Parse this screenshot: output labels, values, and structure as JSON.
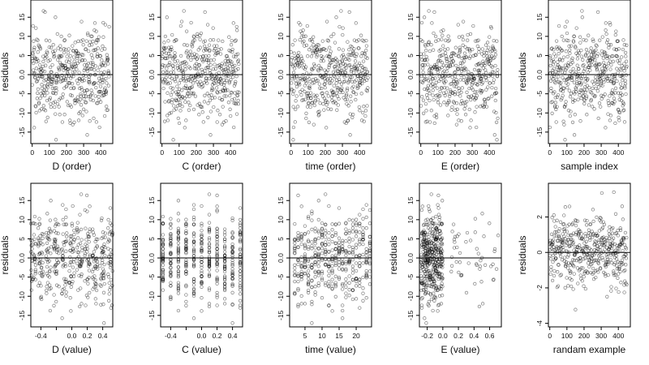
{
  "chart_data": [
    {
      "type": "scatter",
      "xlabel": "D (order)",
      "ylabel": "residuals",
      "xlim": [
        -8,
        470
      ],
      "ylim": [
        -18,
        19.5
      ],
      "xticks": [
        "0",
        "100",
        "200",
        "300",
        "400"
      ],
      "xtick_values": [
        0,
        100,
        200,
        300,
        400
      ],
      "yticks": [
        "-15",
        "-10",
        "-5",
        "0.0",
        "5",
        "10",
        "15"
      ],
      "ytick_values": [
        -15,
        -10,
        -5,
        0,
        5,
        10,
        15
      ],
      "reference_line": 0,
      "n_points": 450,
      "points_desc": "residuals vs sample order, roughly uniform scatter between -15 and 17"
    },
    {
      "type": "scatter",
      "xlabel": "C (order)",
      "ylabel": "residuals",
      "xlim": [
        -8,
        470
      ],
      "ylim": [
        -18,
        19.5
      ],
      "xticks": [
        "0",
        "100",
        "200",
        "300",
        "400"
      ],
      "xtick_values": [
        0,
        100,
        200,
        300,
        400
      ],
      "yticks": [
        "-15",
        "-10",
        "-5",
        "0.0",
        "5",
        "10",
        "15"
      ],
      "ytick_values": [
        -15,
        -10,
        -5,
        0,
        5,
        10,
        15
      ],
      "reference_line": 0,
      "n_points": 450
    },
    {
      "type": "scatter",
      "xlabel": "time (order)",
      "ylabel": "residuals",
      "xlim": [
        -8,
        470
      ],
      "ylim": [
        -18,
        19.5
      ],
      "xticks": [
        "0",
        "100",
        "200",
        "300",
        "400"
      ],
      "xtick_values": [
        0,
        100,
        200,
        300,
        400
      ],
      "yticks": [
        "-15",
        "-10",
        "-5",
        "0.0",
        "5",
        "10",
        "15"
      ],
      "ytick_values": [
        -15,
        -10,
        -5,
        0,
        5,
        10,
        15
      ],
      "reference_line": 0,
      "n_points": 450
    },
    {
      "type": "scatter",
      "xlabel": "E (order)",
      "ylabel": "residuals",
      "xlim": [
        -8,
        470
      ],
      "ylim": [
        -18,
        19.5
      ],
      "xticks": [
        "0",
        "100",
        "200",
        "300",
        "400"
      ],
      "xtick_values": [
        0,
        100,
        200,
        300,
        400
      ],
      "yticks": [
        "-15",
        "-10",
        "-5",
        "0.0",
        "5",
        "10",
        "15"
      ],
      "ytick_values": [
        -15,
        -10,
        -5,
        0,
        5,
        10,
        15
      ],
      "reference_line": 0,
      "n_points": 450
    },
    {
      "type": "scatter",
      "xlabel": "sample index",
      "ylabel": "residuals",
      "xlim": [
        -8,
        470
      ],
      "ylim": [
        -18,
        19.5
      ],
      "xticks": [
        "0",
        "100",
        "200",
        "300",
        "400"
      ],
      "xtick_values": [
        0,
        100,
        200,
        300,
        400
      ],
      "yticks": [
        "-15",
        "-10",
        "-5",
        "0.0",
        "5",
        "10",
        "15"
      ],
      "ytick_values": [
        -15,
        -10,
        -5,
        0,
        5,
        10,
        15
      ],
      "reference_line": 0,
      "n_points": 450
    },
    {
      "type": "scatter",
      "xlabel": "D (value)",
      "ylabel": "residuals",
      "xlim": [
        -0.53,
        0.53
      ],
      "ylim": [
        -18,
        19.5
      ],
      "xticks": [
        "-0.4",
        "0.0",
        "0.2",
        "0.4"
      ],
      "xtick_values": [
        -0.4,
        0.0,
        0.2,
        0.4
      ],
      "minor_xticks": [
        -0.2
      ],
      "yticks": [
        "-15",
        "-10",
        "-5",
        "0.0",
        "5",
        "10",
        "15"
      ],
      "ytick_values": [
        -15,
        -10,
        -5,
        0,
        5,
        10,
        15
      ],
      "reference_line": 0,
      "n_points": 450,
      "x_pattern": "values clustered at discrete levels in [-0.5, 0.5]"
    },
    {
      "type": "scatter",
      "xlabel": "C (value)",
      "ylabel": "residuals",
      "xlim": [
        -0.53,
        0.53
      ],
      "ylim": [
        -18,
        19.5
      ],
      "xticks": [
        "-0.4",
        "0.0",
        "0.2",
        "0.4"
      ],
      "xtick_values": [
        -0.4,
        0.0,
        0.2,
        0.4
      ],
      "minor_xticks": [
        -0.2
      ],
      "yticks": [
        "-15",
        "-10",
        "-5",
        "0.0",
        "5",
        "10",
        "15"
      ],
      "ytick_values": [
        -15,
        -10,
        -5,
        0,
        5,
        10,
        15
      ],
      "reference_line": 0,
      "n_points": 450,
      "x_pattern": "vertical stripes at discrete levels -0.5 to 0.5"
    },
    {
      "type": "scatter",
      "xlabel": "time (value)",
      "ylabel": "residuals",
      "xlim": [
        0.5,
        24.5
      ],
      "ylim": [
        -18,
        19.5
      ],
      "xticks": [
        "5",
        "10",
        "15",
        "20"
      ],
      "xtick_values": [
        5,
        10,
        15,
        20
      ],
      "yticks": [
        "-15",
        "-10",
        "-5",
        "0.0",
        "5",
        "10",
        "15"
      ],
      "ytick_values": [
        -15,
        -10,
        -5,
        0,
        5,
        10,
        15
      ],
      "reference_line": 0,
      "n_points": 450,
      "x_pattern": "integer levels 2 to 24"
    },
    {
      "type": "scatter",
      "xlabel": "E (value)",
      "ylabel": "residuals",
      "xlim": [
        -0.3,
        0.75
      ],
      "ylim": [
        -18,
        19.5
      ],
      "xticks": [
        "-0.2",
        "0.0",
        "0.2",
        "0.4",
        "0.6"
      ],
      "xtick_values": [
        -0.2,
        0.0,
        0.2,
        0.4,
        0.6
      ],
      "yticks": [
        "-15",
        "-10",
        "-5",
        "0.0",
        "5",
        "10",
        "15"
      ],
      "ytick_values": [
        -15,
        -10,
        -5,
        0,
        5,
        10,
        15
      ],
      "reference_line": 0,
      "n_points": 450,
      "x_pattern": "dense cluster between -0.28 and 0.0, sparse points from 0.1 to 0.72"
    },
    {
      "type": "scatter",
      "xlabel": "randam example",
      "ylabel": "residuals",
      "xlim": [
        -8,
        470
      ],
      "ylim": [
        -4.2,
        3.9
      ],
      "xticks": [
        "0",
        "100",
        "200",
        "300",
        "400"
      ],
      "xtick_values": [
        0,
        100,
        200,
        300,
        400
      ],
      "yticks": [
        "-4",
        "-2",
        "0",
        "2"
      ],
      "ytick_values": [
        -4,
        -2,
        0,
        2
      ],
      "reference_line": 0,
      "n_points": 450,
      "points_desc": "random normal noise, mostly between -2 and 2.5"
    }
  ]
}
